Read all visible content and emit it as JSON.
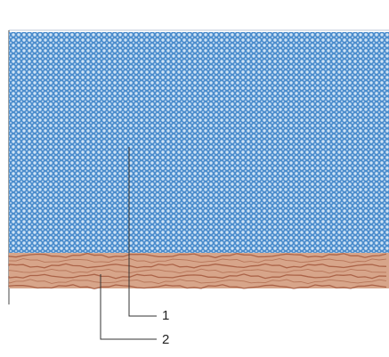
{
  "diagram": {
    "callouts": [
      {
        "id": "1",
        "text": "1",
        "target": "blue-mesh-layer"
      },
      {
        "id": "2",
        "text": "2",
        "target": "copper-bottom-layer"
      }
    ],
    "colors": {
      "top_layer": "#4a8ccc",
      "top_layer_dots": "#cfe3f5",
      "bottom_layer": "#d7a58a",
      "bottom_layer_lines": "#9c4e32",
      "leader_lines": "#333333"
    }
  }
}
